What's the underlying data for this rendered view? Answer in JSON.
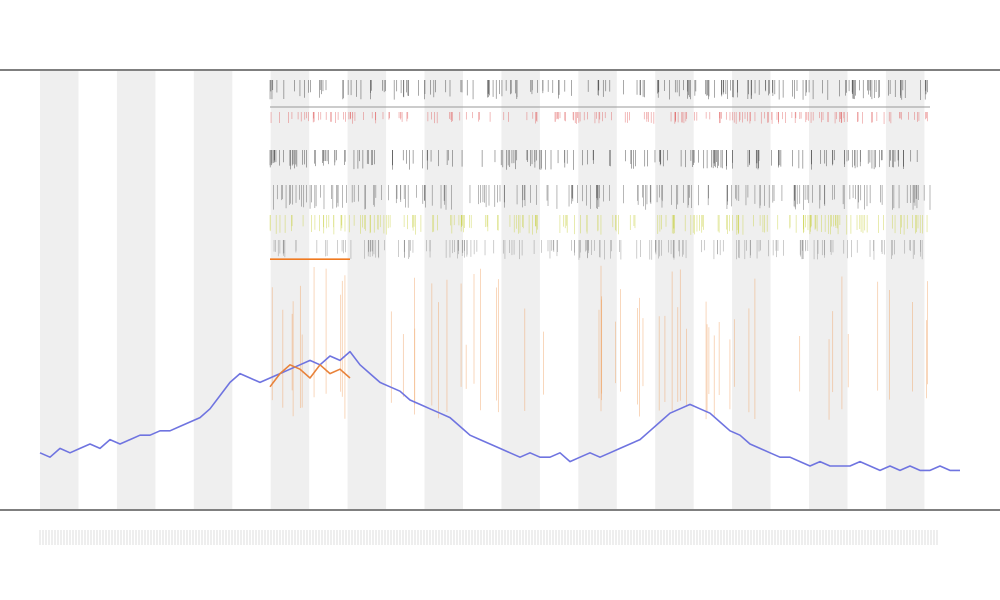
{
  "chart_data": {
    "type": "line",
    "ylim": [
      0,
      100
    ],
    "series": [
      {
        "color": "#6f74e0",
        "values": [
          13,
          12,
          14,
          13,
          14,
          15,
          14,
          16,
          15,
          16,
          17,
          17,
          18,
          18,
          19,
          20,
          21,
          23,
          26,
          29,
          31,
          30,
          29,
          30,
          31,
          32,
          33,
          34,
          33,
          35,
          34,
          36,
          33,
          31,
          29,
          28,
          27,
          25,
          24,
          23,
          22,
          21,
          19,
          17,
          16,
          15,
          14,
          13,
          12,
          13,
          12,
          12,
          13,
          11,
          12,
          13,
          12,
          13,
          14,
          15,
          16,
          18,
          20,
          22,
          23,
          24,
          23,
          22,
          20,
          18,
          17,
          15,
          14,
          13,
          12,
          12,
          11,
          10,
          11,
          10,
          10,
          10,
          11,
          10,
          9,
          10,
          9,
          10,
          9,
          9,
          10,
          9,
          9
        ]
      },
      {
        "color": "#e8823a",
        "values": [
          null,
          null,
          null,
          null,
          null,
          null,
          null,
          null,
          null,
          null,
          null,
          null,
          null,
          null,
          null,
          null,
          null,
          null,
          null,
          null,
          null,
          null,
          null,
          28,
          31,
          33,
          32,
          30,
          33,
          31,
          32,
          30,
          null,
          null,
          null,
          null,
          null,
          null,
          null,
          null,
          null,
          null,
          null,
          null,
          null,
          null,
          null,
          null,
          null,
          null,
          null,
          null,
          null,
          null,
          null,
          null,
          null,
          null,
          null,
          null,
          null,
          null,
          null,
          null,
          null,
          null,
          null,
          null,
          null,
          null,
          null,
          null,
          null,
          null,
          null,
          null,
          null,
          null,
          null,
          null,
          null,
          null,
          null,
          null,
          null,
          null,
          null,
          null,
          null,
          null,
          null,
          null,
          null
        ]
      },
      {
        "color": "#f07a20",
        "values": [
          null,
          null,
          null,
          null,
          null,
          null,
          null,
          null,
          null,
          null,
          null,
          null,
          null,
          null,
          null,
          null,
          null,
          null,
          null,
          null,
          null,
          null,
          null,
          57,
          57,
          57,
          57,
          57,
          57,
          57,
          57,
          57,
          null,
          null,
          null,
          null,
          null,
          null,
          null,
          null,
          null,
          null,
          null,
          null,
          null,
          null,
          null,
          null,
          null,
          null,
          null,
          null,
          null,
          null,
          null,
          null,
          null,
          null,
          null,
          null,
          null,
          null,
          null,
          null,
          null,
          null,
          null,
          null,
          null,
          null,
          null,
          null,
          null,
          null,
          null,
          null,
          null,
          null,
          null,
          null,
          null,
          null,
          null,
          null,
          null,
          null,
          null,
          null,
          null,
          null,
          null,
          null,
          null
        ]
      }
    ]
  }
}
